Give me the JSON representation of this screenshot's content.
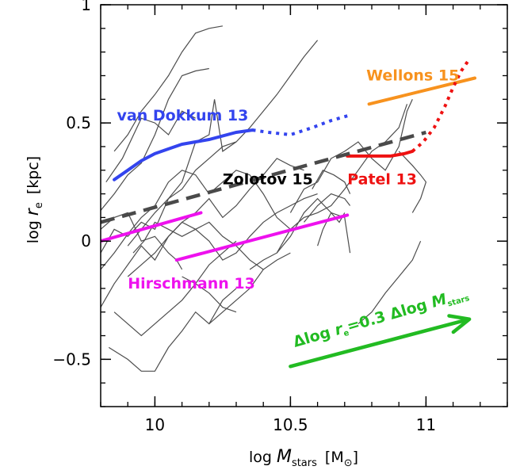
{
  "chart_data": {
    "type": "line",
    "xlim": [
      9.8,
      11.3
    ],
    "ylim": [
      -0.7,
      1.0
    ],
    "xticks": [
      {
        "value": 10.0,
        "label": "10"
      },
      {
        "value": 10.5,
        "label": "10.5"
      },
      {
        "value": 11.0,
        "label": "11"
      }
    ],
    "yticks": [
      {
        "value": -0.5,
        "label": "−0.5"
      },
      {
        "value": 0.0,
        "label": "0"
      },
      {
        "value": 0.5,
        "label": "0.5"
      },
      {
        "value": 1.0,
        "label": "1"
      }
    ],
    "xlabel": {
      "prefix": "log ",
      "var": "M",
      "sub": "stars",
      "unit": "[M",
      "unit_sub": "⊙",
      "unit_end": "]"
    },
    "ylabel": {
      "prefix": "log ",
      "var": "r",
      "sub": "e",
      "unit": "[kpc]"
    },
    "gray_tracks": [
      [
        [
          9.8,
          0.13
        ],
        [
          9.85,
          0.2
        ],
        [
          9.9,
          0.28
        ],
        [
          9.95,
          0.33
        ],
        [
          10.0,
          0.45
        ],
        [
          10.05,
          0.6
        ],
        [
          10.1,
          0.7
        ],
        [
          10.15,
          0.72
        ],
        [
          10.2,
          0.73
        ]
      ],
      [
        [
          9.85,
          0.38
        ],
        [
          9.9,
          0.45
        ],
        [
          9.95,
          0.55
        ],
        [
          10.0,
          0.62
        ],
        [
          10.05,
          0.7
        ],
        [
          10.1,
          0.8
        ],
        [
          10.15,
          0.88
        ],
        [
          10.2,
          0.9
        ],
        [
          10.25,
          0.91
        ]
      ],
      [
        [
          9.82,
          0.25
        ],
        [
          9.88,
          0.35
        ],
        [
          9.95,
          0.52
        ],
        [
          10.0,
          0.5
        ],
        [
          10.05,
          0.45
        ],
        [
          10.1,
          0.55
        ],
        [
          10.15,
          0.52
        ]
      ],
      [
        [
          9.8,
          -0.05
        ],
        [
          9.85,
          0.05
        ],
        [
          9.9,
          0.02
        ],
        [
          9.95,
          0.08
        ],
        [
          10.0,
          0.05
        ],
        [
          10.05,
          0.18
        ],
        [
          10.1,
          0.22
        ],
        [
          10.15,
          0.3
        ],
        [
          10.2,
          0.35
        ],
        [
          10.25,
          0.4
        ],
        [
          10.3,
          0.42
        ],
        [
          10.35,
          0.48
        ],
        [
          10.4,
          0.55
        ],
        [
          10.45,
          0.62
        ],
        [
          10.5,
          0.7
        ],
        [
          10.55,
          0.78
        ],
        [
          10.6,
          0.85
        ]
      ],
      [
        [
          9.9,
          -0.02
        ],
        [
          9.95,
          0.05
        ],
        [
          10.0,
          0.12
        ],
        [
          10.05,
          0.18
        ],
        [
          10.1,
          0.25
        ],
        [
          10.15,
          0.42
        ],
        [
          10.2,
          0.45
        ],
        [
          10.22,
          0.6
        ],
        [
          10.25,
          0.38
        ],
        [
          10.3,
          0.42
        ]
      ],
      [
        [
          9.8,
          -0.12
        ],
        [
          9.85,
          -0.05
        ],
        [
          9.9,
          0.03
        ],
        [
          9.95,
          0.1
        ],
        [
          10.0,
          0.15
        ],
        [
          10.05,
          0.25
        ],
        [
          10.1,
          0.3
        ],
        [
          10.15,
          0.28
        ],
        [
          10.2,
          0.2
        ],
        [
          10.25,
          0.25
        ],
        [
          10.3,
          0.3
        ],
        [
          10.35,
          0.28
        ],
        [
          10.4,
          0.2
        ],
        [
          10.45,
          0.1
        ],
        [
          10.5,
          0.05
        ]
      ],
      [
        [
          9.8,
          -0.28
        ],
        [
          9.85,
          -0.18
        ],
        [
          9.9,
          -0.1
        ],
        [
          9.95,
          -0.02
        ],
        [
          10.0,
          -0.08
        ],
        [
          10.05,
          0.02
        ],
        [
          10.1,
          0.08
        ],
        [
          10.15,
          0.12
        ],
        [
          10.2,
          0.18
        ],
        [
          10.25,
          0.1
        ],
        [
          10.3,
          0.15
        ],
        [
          10.35,
          0.22
        ],
        [
          10.4,
          0.28
        ],
        [
          10.45,
          0.35
        ],
        [
          10.5,
          0.32
        ],
        [
          10.55,
          0.3
        ]
      ],
      [
        [
          9.83,
          -0.45
        ],
        [
          9.9,
          -0.5
        ],
        [
          9.95,
          -0.55
        ],
        [
          10.0,
          -0.55
        ],
        [
          10.05,
          -0.45
        ],
        [
          10.1,
          -0.38
        ],
        [
          10.15,
          -0.3
        ],
        [
          10.2,
          -0.35
        ],
        [
          10.25,
          -0.25
        ],
        [
          10.3,
          -0.2
        ]
      ],
      [
        [
          9.85,
          -0.3
        ],
        [
          9.9,
          -0.35
        ],
        [
          9.95,
          -0.4
        ],
        [
          10.0,
          -0.35
        ],
        [
          10.05,
          -0.3
        ],
        [
          10.1,
          -0.25
        ],
        [
          10.15,
          -0.18
        ],
        [
          10.2,
          -0.1
        ],
        [
          10.25,
          -0.05
        ],
        [
          10.3,
          0.0
        ]
      ],
      [
        [
          9.9,
          -0.15
        ],
        [
          9.95,
          -0.1
        ],
        [
          10.0,
          -0.05
        ],
        [
          10.05,
          0.02
        ],
        [
          10.1,
          0.08
        ],
        [
          10.15,
          0.05
        ],
        [
          10.2,
          0.0
        ],
        [
          10.25,
          -0.08
        ],
        [
          10.3,
          -0.05
        ],
        [
          10.35,
          0.02
        ],
        [
          10.4,
          0.08
        ],
        [
          10.45,
          0.12
        ],
        [
          10.5,
          0.15
        ],
        [
          10.55,
          0.18
        ],
        [
          10.6,
          0.2
        ]
      ],
      [
        [
          9.8,
          0.05
        ],
        [
          9.85,
          0.1
        ],
        [
          9.9,
          0.12
        ],
        [
          9.95,
          0.0
        ],
        [
          10.0,
          0.02
        ],
        [
          10.05,
          -0.05
        ],
        [
          10.08,
          -0.08
        ],
        [
          10.1,
          -0.12
        ]
      ],
      [
        [
          9.92,
          -0.05
        ],
        [
          9.96,
          0.0
        ],
        [
          10.0,
          0.08
        ],
        [
          10.05,
          0.05
        ],
        [
          10.1,
          0.02
        ],
        [
          10.15,
          0.05
        ],
        [
          10.2,
          0.08
        ],
        [
          10.25,
          0.02
        ],
        [
          10.3,
          -0.02
        ],
        [
          10.35,
          -0.08
        ],
        [
          10.4,
          -0.12
        ]
      ],
      [
        [
          10.35,
          -0.12
        ],
        [
          10.4,
          -0.08
        ],
        [
          10.45,
          -0.05
        ],
        [
          10.5,
          0.05
        ],
        [
          10.55,
          0.1
        ],
        [
          10.6,
          0.12
        ],
        [
          10.65,
          0.15
        ],
        [
          10.7,
          0.22
        ],
        [
          10.75,
          0.3
        ],
        [
          10.8,
          0.38
        ],
        [
          10.85,
          0.42
        ],
        [
          10.9,
          0.48
        ],
        [
          10.93,
          0.58
        ]
      ],
      [
        [
          10.45,
          -0.05
        ],
        [
          10.5,
          0.02
        ],
        [
          10.55,
          0.12
        ],
        [
          10.6,
          0.18
        ],
        [
          10.65,
          0.12
        ],
        [
          10.7,
          0.1
        ],
        [
          10.72,
          -0.05
        ]
      ],
      [
        [
          10.5,
          0.12
        ],
        [
          10.55,
          0.22
        ],
        [
          10.6,
          0.25
        ],
        [
          10.65,
          0.35
        ],
        [
          10.7,
          0.38
        ],
        [
          10.75,
          0.42
        ],
        [
          10.8,
          0.35
        ],
        [
          10.85,
          0.3
        ],
        [
          10.9,
          0.4
        ],
        [
          10.93,
          0.55
        ],
        [
          10.95,
          0.6
        ]
      ],
      [
        [
          10.55,
          0.08
        ],
        [
          10.6,
          0.15
        ],
        [
          10.65,
          0.2
        ],
        [
          10.7,
          0.18
        ],
        [
          10.72,
          0.15
        ]
      ],
      [
        [
          10.58,
          0.22
        ],
        [
          10.62,
          0.3
        ],
        [
          10.66,
          0.28
        ],
        [
          10.7,
          0.25
        ],
        [
          10.72,
          0.2
        ]
      ],
      [
        [
          10.6,
          -0.02
        ],
        [
          10.62,
          0.05
        ],
        [
          10.65,
          0.12
        ],
        [
          10.68,
          0.08
        ],
        [
          10.7,
          0.12
        ]
      ],
      [
        [
          10.75,
          -0.35
        ],
        [
          10.8,
          -0.3
        ],
        [
          10.85,
          -0.22
        ],
        [
          10.9,
          -0.15
        ],
        [
          10.95,
          -0.08
        ],
        [
          10.98,
          0.0
        ]
      ],
      [
        [
          10.9,
          0.38
        ],
        [
          10.95,
          0.32
        ],
        [
          10.98,
          0.28
        ],
        [
          11.0,
          0.25
        ],
        [
          10.98,
          0.18
        ],
        [
          10.95,
          0.12
        ]
      ],
      [
        [
          10.2,
          -0.35
        ],
        [
          10.25,
          -0.3
        ],
        [
          10.3,
          -0.25
        ],
        [
          10.35,
          -0.2
        ],
        [
          10.4,
          -0.12
        ],
        [
          10.45,
          -0.08
        ],
        [
          10.5,
          -0.05
        ]
      ],
      [
        [
          10.1,
          -0.15
        ],
        [
          10.15,
          -0.18
        ],
        [
          10.2,
          -0.22
        ],
        [
          10.25,
          -0.28
        ],
        [
          10.3,
          -0.3
        ]
      ]
    ],
    "series": [
      {
        "name": "van Dokkum 13",
        "color": "#3344ee",
        "style": "solid",
        "points": [
          [
            9.85,
            0.26
          ],
          [
            9.9,
            0.3
          ],
          [
            9.95,
            0.34
          ],
          [
            10.0,
            0.37
          ],
          [
            10.05,
            0.39
          ],
          [
            10.1,
            0.41
          ],
          [
            10.2,
            0.43
          ],
          [
            10.3,
            0.46
          ],
          [
            10.36,
            0.47
          ]
        ]
      },
      {
        "name": "",
        "color": "#3344ee",
        "style": "dotted",
        "points": [
          [
            10.36,
            0.47
          ],
          [
            10.42,
            0.46
          ],
          [
            10.5,
            0.45
          ],
          [
            10.58,
            0.48
          ],
          [
            10.65,
            0.51
          ],
          [
            10.71,
            0.53
          ]
        ]
      },
      {
        "name": "Wellons 15",
        "color": "#f7921e",
        "style": "solid",
        "points": [
          [
            10.79,
            0.58
          ],
          [
            11.18,
            0.69
          ]
        ]
      },
      {
        "name": "Patel 13",
        "color": "#ee1111",
        "style": "solid",
        "points": [
          [
            10.71,
            0.36
          ],
          [
            10.8,
            0.36
          ],
          [
            10.87,
            0.36
          ],
          [
            10.92,
            0.37
          ],
          [
            10.95,
            0.38
          ]
        ]
      },
      {
        "name": "",
        "color": "#ee1111",
        "style": "dotted",
        "points": [
          [
            10.95,
            0.38
          ],
          [
            10.99,
            0.42
          ],
          [
            11.03,
            0.48
          ],
          [
            11.07,
            0.57
          ],
          [
            11.1,
            0.65
          ],
          [
            11.13,
            0.72
          ],
          [
            11.16,
            0.77
          ]
        ]
      },
      {
        "name": "Zolotov 15",
        "color": "#4a4a4a",
        "style": "dashed",
        "points": [
          [
            9.8,
            0.08
          ],
          [
            11.0,
            0.46
          ]
        ]
      },
      {
        "name": "Hirschmann 13",
        "color": "#ee11ee",
        "style": "solid",
        "points": [
          [
            9.8,
            0.0
          ],
          [
            10.17,
            0.12
          ]
        ]
      },
      {
        "name": "",
        "color": "#ee11ee",
        "style": "solid",
        "points": [
          [
            10.08,
            -0.08
          ],
          [
            10.71,
            0.11
          ]
        ]
      }
    ],
    "labels": [
      {
        "text": "van Dokkum 13",
        "color": "#3344ee",
        "x": 9.86,
        "y": 0.51
      },
      {
        "text": "Wellons 15",
        "color": "#f7921e",
        "x": 10.78,
        "y": 0.68
      },
      {
        "text": "Zolotov 15",
        "color": "#000000",
        "x": 10.25,
        "y": 0.24
      },
      {
        "text": "Patel 13",
        "color": "#ee1111",
        "x": 10.71,
        "y": 0.24
      },
      {
        "text": "Hirschmann 13",
        "color": "#ee11ee",
        "x": 9.9,
        "y": -0.2
      }
    ],
    "arrow": {
      "color": "#22bb22",
      "from": [
        10.5,
        -0.53
      ],
      "to": [
        11.16,
        -0.33
      ],
      "label": {
        "prefix": "Δlog ",
        "var": "r",
        "sub": "e",
        "mid": "=0.3 Δlog ",
        "var2": "M",
        "sub2": "stars"
      }
    }
  }
}
